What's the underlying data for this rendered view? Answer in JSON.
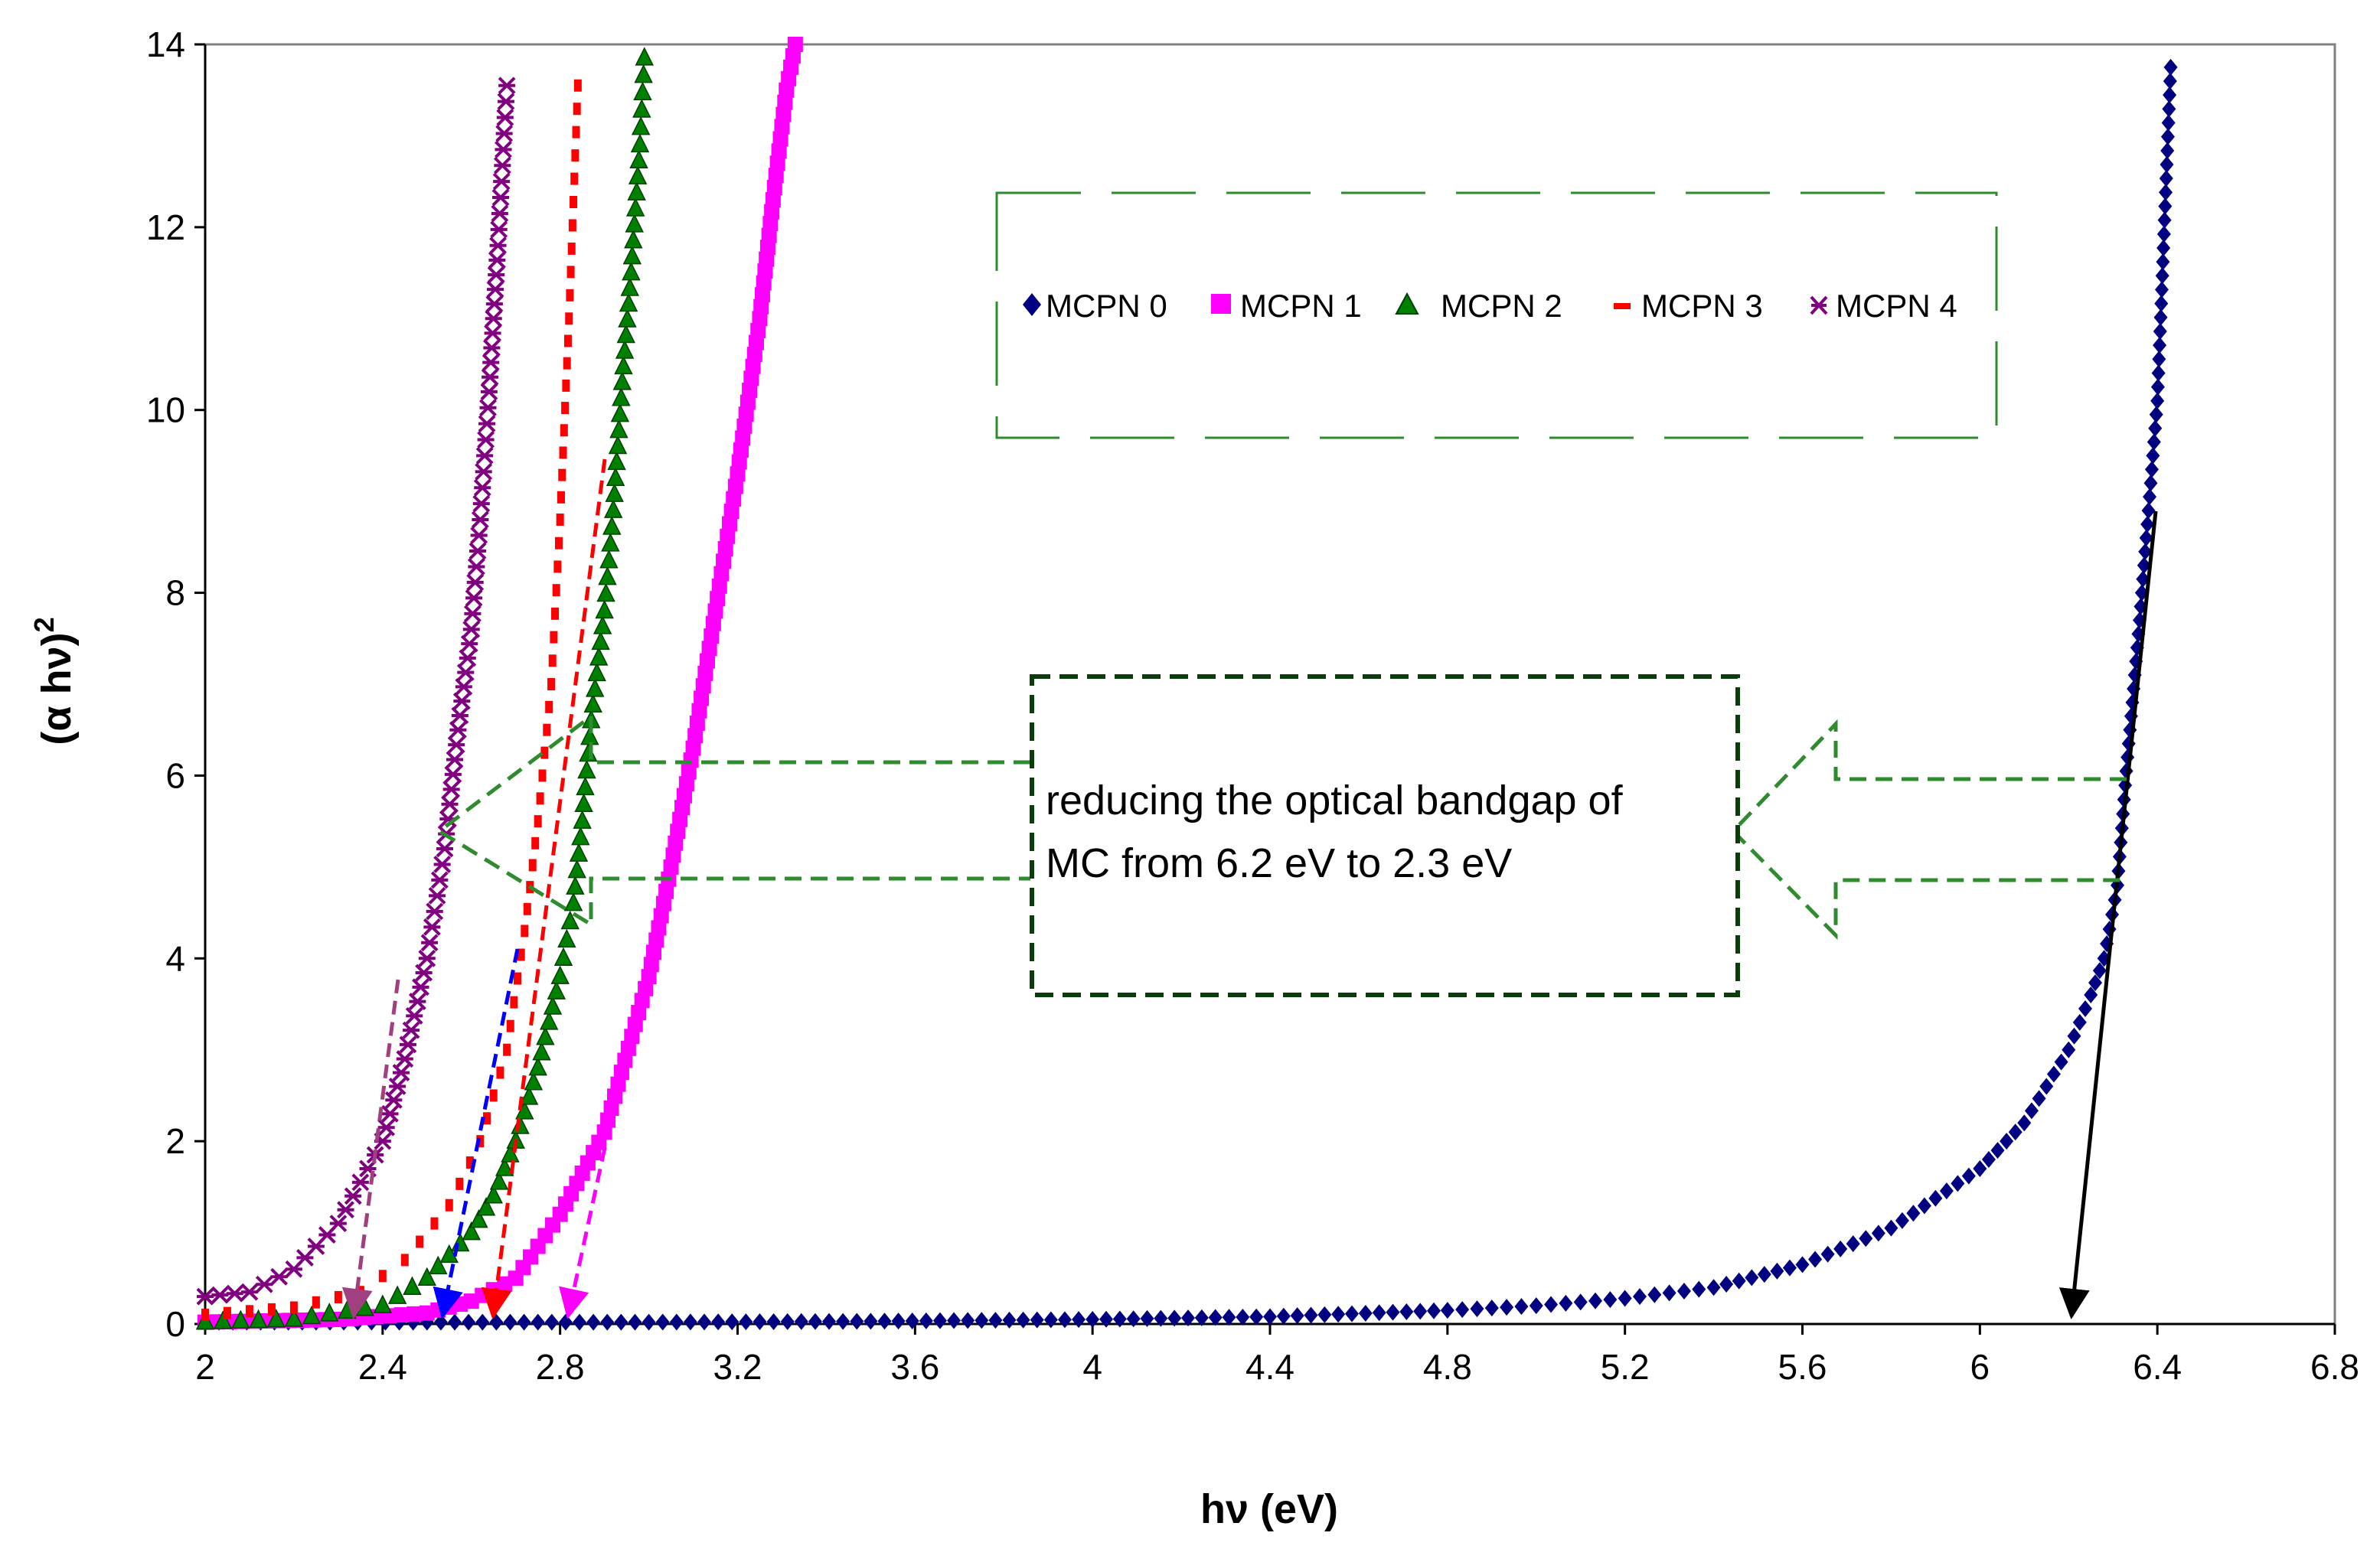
{
  "chart_data": {
    "type": "scatter",
    "title": "",
    "xlabel": "hν (eV)",
    "ylabel": "(α hν)²",
    "ylabel_parts": {
      "base": "(α hν)",
      "sup": "2"
    },
    "xlim": [
      2,
      6.8
    ],
    "ylim": [
      0,
      14
    ],
    "x_ticks": [
      "2",
      "2.4",
      "2.8",
      "3.2",
      "3.6",
      "4",
      "4.4",
      "4.8",
      "5.2",
      "5.6",
      "6",
      "6.4",
      "6.8"
    ],
    "y_ticks": [
      "0",
      "2",
      "4",
      "6",
      "8",
      "10",
      "12",
      "14"
    ],
    "legend_position": "upper-right",
    "series": [
      {
        "name": "MCPN 0",
        "marker": "diamond",
        "color": "#000080",
        "points": [
          [
            2.0,
            0.02
          ],
          [
            2.5,
            0.02
          ],
          [
            3.0,
            0.02
          ],
          [
            3.5,
            0.03
          ],
          [
            4.0,
            0.05
          ],
          [
            4.4,
            0.08
          ],
          [
            4.8,
            0.15
          ],
          [
            5.0,
            0.2
          ],
          [
            5.2,
            0.28
          ],
          [
            5.4,
            0.4
          ],
          [
            5.6,
            0.65
          ],
          [
            5.8,
            1.05
          ],
          [
            6.0,
            1.7
          ],
          [
            6.1,
            2.2
          ],
          [
            6.2,
            3.0
          ],
          [
            6.25,
            3.6
          ],
          [
            6.28,
            4.0
          ],
          [
            6.31,
            4.8
          ],
          [
            6.33,
            6.05
          ],
          [
            6.36,
            7.7
          ],
          [
            6.4,
            10.1
          ],
          [
            6.43,
            13.75
          ]
        ]
      },
      {
        "name": "MCPN 1",
        "marker": "square",
        "color": "#ff00ff",
        "points": [
          [
            2.0,
            0.02
          ],
          [
            2.3,
            0.05
          ],
          [
            2.5,
            0.12
          ],
          [
            2.6,
            0.25
          ],
          [
            2.7,
            0.5
          ],
          [
            2.8,
            1.2
          ],
          [
            2.9,
            2.1
          ],
          [
            3.0,
            3.8
          ],
          [
            3.05,
            5.0
          ],
          [
            3.1,
            6.3
          ],
          [
            3.15,
            7.8
          ],
          [
            3.2,
            9.3
          ],
          [
            3.25,
            11.0
          ],
          [
            3.28,
            12.3
          ],
          [
            3.31,
            13.5
          ],
          [
            3.33,
            14.0
          ]
        ]
      },
      {
        "name": "MCPN 2",
        "marker": "triangle",
        "color": "#008000",
        "points": [
          [
            2.0,
            0.02
          ],
          [
            2.2,
            0.05
          ],
          [
            2.4,
            0.2
          ],
          [
            2.5,
            0.5
          ],
          [
            2.6,
            1.0
          ],
          [
            2.65,
            1.4
          ],
          [
            2.7,
            2.0
          ],
          [
            2.75,
            2.8
          ],
          [
            2.8,
            3.8
          ],
          [
            2.83,
            4.6
          ],
          [
            2.85,
            5.5
          ],
          [
            2.87,
            6.6
          ],
          [
            2.9,
            7.8
          ],
          [
            2.92,
            8.9
          ],
          [
            2.94,
            10.3
          ],
          [
            2.96,
            11.5
          ],
          [
            2.98,
            12.9
          ],
          [
            2.99,
            13.85
          ]
        ]
      },
      {
        "name": "MCPN 3",
        "marker": "dash",
        "color": "#ff0000",
        "points": [
          [
            2.0,
            0.1
          ],
          [
            2.2,
            0.18
          ],
          [
            2.35,
            0.35
          ],
          [
            2.45,
            0.7
          ],
          [
            2.55,
            1.3
          ],
          [
            2.62,
            2.0
          ],
          [
            2.68,
            3.0
          ],
          [
            2.72,
            4.3
          ],
          [
            2.75,
            5.5
          ],
          [
            2.78,
            7.0
          ],
          [
            2.8,
            8.8
          ],
          [
            2.82,
            11.0
          ],
          [
            2.84,
            13.55
          ]
        ]
      },
      {
        "name": "MCPN 4",
        "marker": "star",
        "color": "#800080",
        "points": [
          [
            2.0,
            0.3
          ],
          [
            2.1,
            0.35
          ],
          [
            2.2,
            0.6
          ],
          [
            2.3,
            1.1
          ],
          [
            2.4,
            2.0
          ],
          [
            2.45,
            2.9
          ],
          [
            2.5,
            4.0
          ],
          [
            2.54,
            5.2
          ],
          [
            2.57,
            6.5
          ],
          [
            2.6,
            7.6
          ],
          [
            2.62,
            8.8
          ],
          [
            2.64,
            10.2
          ],
          [
            2.66,
            11.8
          ],
          [
            2.68,
            13.55
          ]
        ]
      }
    ],
    "annotation": "reducing the optical bandgap of MC from 6.2 eV to 2.3 eV",
    "annotation_lines": [
      "reducing the optical bandgap of",
      "MC from 6.2 eV to 2.3 eV"
    ],
    "extrapolation_intercepts_eV": [
      2.3,
      2.55,
      2.64,
      2.82,
      6.2
    ]
  }
}
